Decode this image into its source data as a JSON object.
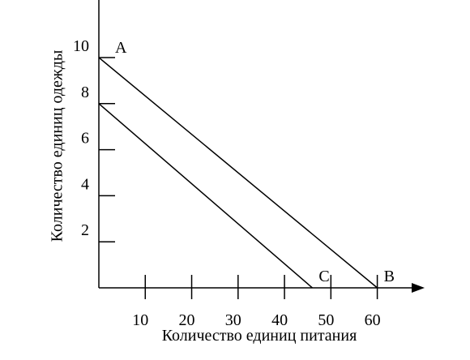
{
  "chart_data": {
    "type": "line",
    "x_label": "Количество единиц питания",
    "y_label": "Количество единиц одежды",
    "series": [
      {
        "x": [
          0,
          60
        ],
        "values": [
          10,
          0
        ],
        "color": "#000000"
      },
      {
        "x": [
          0,
          46
        ],
        "values": [
          8,
          0
        ],
        "color": "#000000"
      }
    ],
    "annotations": [
      {
        "text": "A",
        "x": 0,
        "y": 10
      },
      {
        "text": "B",
        "x": 60,
        "y": 0
      },
      {
        "text": "C",
        "x": 46,
        "y": 0
      }
    ],
    "xlim": [
      0,
      69.5
    ],
    "ylim": [
      0,
      12.5
    ],
    "xticks": [
      10,
      20,
      30,
      40,
      50,
      60
    ],
    "yticks": [
      2,
      4,
      6,
      8,
      10
    ]
  }
}
